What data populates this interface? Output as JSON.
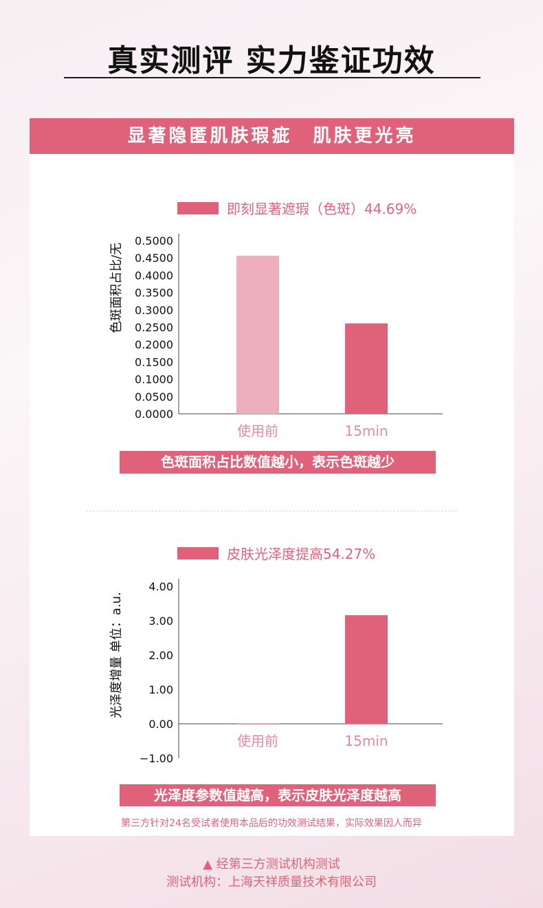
{
  "page": {
    "title": "真实测评 实力鉴证功效",
    "banner": "显著隐匿肌肤瑕疵　肌肤更光亮",
    "footnote": "第三方针对24名受试者使用本品后的功效测试结果，实际效果因人而异",
    "test_org_line1": "▲ 经第三方测试机构测试",
    "test_org_line2": "测试机构：上海天祥质量技术有限公司"
  },
  "colors": {
    "accent": "#e0627a",
    "light_bar": "#ecafbb",
    "axis": "#444444"
  },
  "chart_data": [
    {
      "type": "bar",
      "title": "即刻显著遮瑕（色斑）44.69%",
      "ylabel": "色斑面积占比/无",
      "categories": [
        "使用前",
        "15min"
      ],
      "values": [
        0.456,
        0.261
      ],
      "ylim": [
        0,
        0.5
      ],
      "yticks": [
        "0.5000",
        "0.4500",
        "0.4000",
        "0.3500",
        "0.3000",
        "0.2500",
        "0.2000",
        "0.1500",
        "0.1000",
        "0.0500",
        "0.0000"
      ],
      "caption": "色斑面积占比数值越小，表示色斑越少",
      "grid": false,
      "legend": "top"
    },
    {
      "type": "bar",
      "title": "皮肤光泽度提高54.27%",
      "ylabel": "光泽度增量 单位：a.u.",
      "categories": [
        "使用前",
        "15min"
      ],
      "values": [
        0.02,
        3.16
      ],
      "ylim": [
        -1,
        4
      ],
      "yticks": [
        "4.00",
        "3.00",
        "2.00",
        "1.00",
        "0.00",
        "−1.00"
      ],
      "caption": "光泽度参数值越高，表示皮肤光泽度越高",
      "grid": false,
      "legend": "top"
    }
  ]
}
